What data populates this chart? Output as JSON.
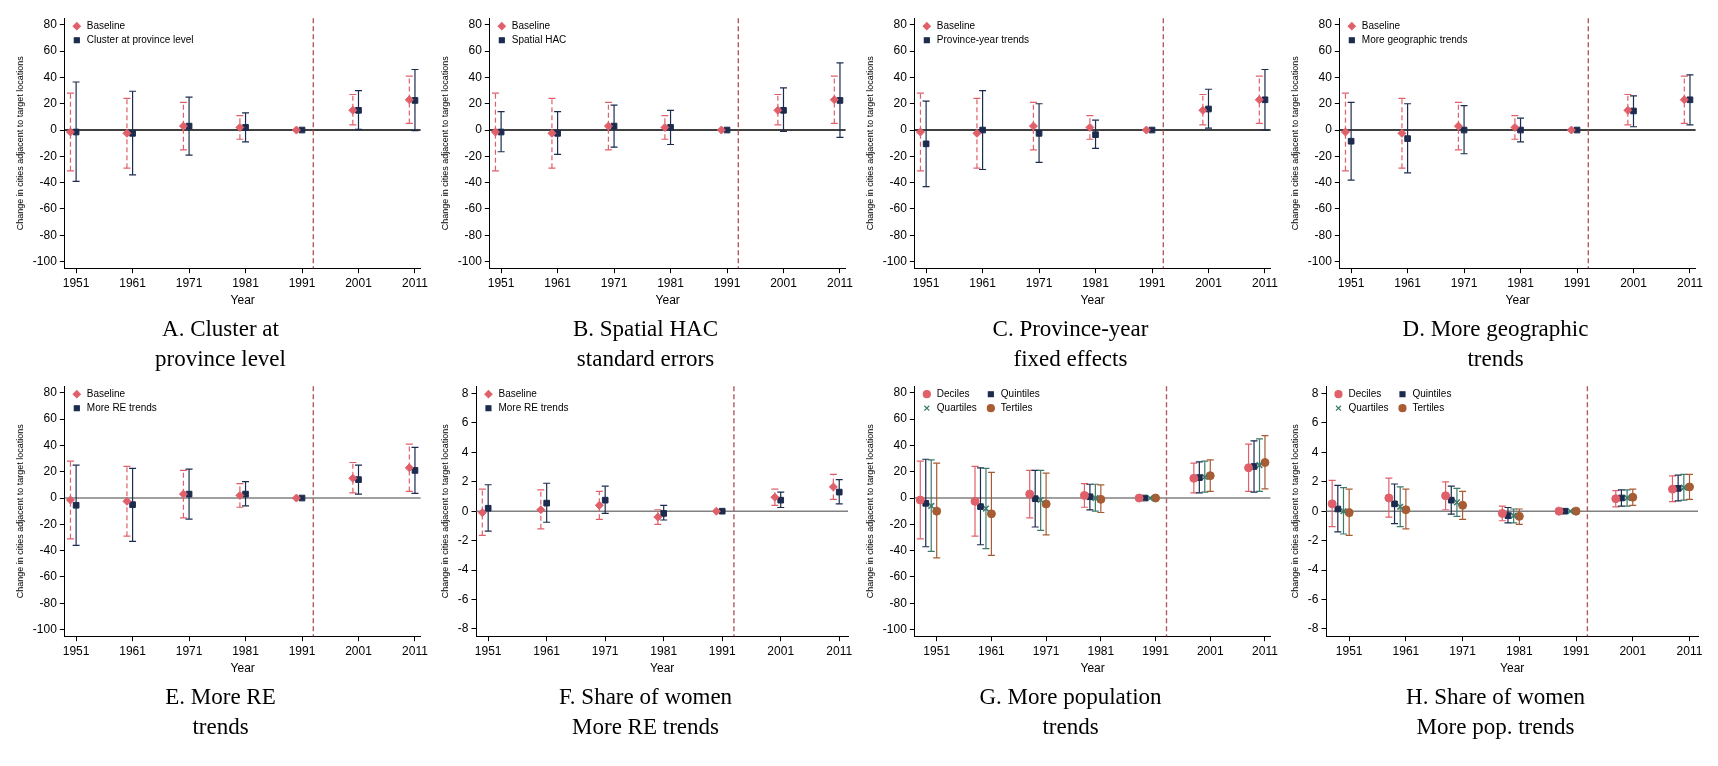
{
  "chart_data": [
    {
      "type": "scatter",
      "title": "A. Cluster at\nprovince level",
      "xlabel": "Year",
      "ylabel": "Change in cities adjacent to target locations",
      "xlim": [
        1949,
        2012
      ],
      "xticks": [
        1951,
        1961,
        1971,
        1981,
        1991,
        2001,
        2011
      ],
      "ylim": [
        -105,
        85
      ],
      "yticks": [
        -100,
        -80,
        -60,
        -40,
        -20,
        0,
        20,
        40,
        60,
        80
      ],
      "grid": false,
      "legend": "top left",
      "ref_lines": [
        {
          "axis": "y",
          "value": 0,
          "color": "#000000"
        },
        {
          "axis": "x",
          "value": 1993,
          "color": "#b05a62",
          "line_style": "dashed"
        }
      ],
      "series": [
        {
          "name": "Baseline",
          "color": "#e0606a",
          "marker": "diamond",
          "line_style": "dashed",
          "x": [
            1950,
            1960,
            1970,
            1980,
            1990,
            2000,
            2010
          ],
          "values": [
            -1.5,
            -2.5,
            3,
            2,
            0,
            15,
            23
          ],
          "errors": [
            [
              -31,
              28
            ],
            [
              -29,
              24
            ],
            [
              -15,
              21
            ],
            [
              -7,
              11
            ],
            null,
            [
              4,
              27
            ],
            [
              5,
              41
            ]
          ]
        },
        {
          "name": "Cluster at province level",
          "color": "#1c2b4e",
          "marker": "square",
          "x": [
            1951,
            1961,
            1971,
            1981,
            1991,
            2001,
            2011
          ],
          "values": [
            -1.5,
            -2.5,
            3,
            2,
            0,
            15,
            22.5
          ],
          "errors": [
            [
              -39,
              36.5
            ],
            [
              -34,
              29.5
            ],
            [
              -19,
              25
            ],
            [
              -9,
              13
            ],
            null,
            [
              0.5,
              30
            ],
            [
              -0.5,
              46
            ]
          ]
        }
      ]
    },
    {
      "type": "scatter",
      "title": "B. Spatial HAC\nstandard errors",
      "xlabel": "Year",
      "ylabel": "Change in cities adjacent to target locations",
      "xlim": [
        1949,
        2012
      ],
      "xticks": [
        1951,
        1961,
        1971,
        1981,
        1991,
        2001,
        2011
      ],
      "ylim": [
        -105,
        85
      ],
      "yticks": [
        -100,
        -80,
        -60,
        -40,
        -20,
        0,
        20,
        40,
        60,
        80
      ],
      "grid": false,
      "legend": "top left",
      "ref_lines": [
        {
          "axis": "y",
          "value": 0,
          "color": "#000000"
        },
        {
          "axis": "x",
          "value": 1993,
          "color": "#b05a62",
          "line_style": "dashed"
        }
      ],
      "series": [
        {
          "name": "Baseline",
          "color": "#e0606a",
          "marker": "diamond",
          "line_style": "dashed",
          "x": [
            1950,
            1960,
            1970,
            1980,
            1990,
            2000,
            2010
          ],
          "values": [
            -1.5,
            -2.5,
            3,
            2,
            0,
            15,
            23
          ],
          "errors": [
            [
              -31,
              28
            ],
            [
              -29,
              24
            ],
            [
              -15,
              21
            ],
            [
              -7,
              11
            ],
            null,
            [
              4,
              27
            ],
            [
              5,
              41
            ]
          ]
        },
        {
          "name": "Spatial HAC",
          "color": "#1c2b4e",
          "marker": "square",
          "x": [
            1951,
            1961,
            1971,
            1981,
            1991,
            2001,
            2011
          ],
          "values": [
            -1.5,
            -2.5,
            3,
            2,
            0,
            15,
            22.5
          ],
          "errors": [
            [
              -16.5,
              14
            ],
            [
              -18.5,
              14
            ],
            [
              -13,
              19
            ],
            [
              -11,
              15
            ],
            null,
            [
              -1,
              32
            ],
            [
              -5.5,
              51
            ]
          ]
        }
      ]
    },
    {
      "type": "scatter",
      "title": "C. Province-year\nfixed effects",
      "xlabel": "Year",
      "ylabel": "Change in cities adjacent to target locations",
      "xlim": [
        1949,
        2012
      ],
      "xticks": [
        1951,
        1961,
        1971,
        1981,
        1991,
        2001,
        2011
      ],
      "ylim": [
        -105,
        85
      ],
      "yticks": [
        -100,
        -80,
        -60,
        -40,
        -20,
        0,
        20,
        40,
        60,
        80
      ],
      "grid": false,
      "legend": "top left",
      "ref_lines": [
        {
          "axis": "y",
          "value": 0,
          "color": "#000000"
        },
        {
          "axis": "x",
          "value": 1993,
          "color": "#b05a62",
          "line_style": "dashed"
        }
      ],
      "series": [
        {
          "name": "Baseline",
          "color": "#e0606a",
          "marker": "diamond",
          "line_style": "dashed",
          "x": [
            1950,
            1960,
            1970,
            1980,
            1990,
            2000,
            2010
          ],
          "values": [
            -1.5,
            -2.5,
            3,
            2,
            0,
            15,
            23
          ],
          "errors": [
            [
              -31,
              28
            ],
            [
              -29,
              24
            ],
            [
              -15,
              21
            ],
            [
              -7,
              11
            ],
            null,
            [
              4,
              27
            ],
            [
              5,
              41
            ]
          ]
        },
        {
          "name": "Province-year trends",
          "color": "#1c2b4e",
          "marker": "square",
          "x": [
            1951,
            1961,
            1971,
            1981,
            1991,
            2001,
            2011
          ],
          "values": [
            -10.5,
            0,
            -2.5,
            -3.5,
            0,
            16,
            23
          ],
          "errors": [
            [
              -43,
              22
            ],
            [
              -30,
              30
            ],
            [
              -24.5,
              20
            ],
            [
              -14,
              7.5
            ],
            null,
            [
              1.5,
              31
            ],
            [
              0,
              46
            ]
          ]
        }
      ]
    },
    {
      "type": "scatter",
      "title": "D. More geographic\ntrends",
      "xlabel": "Year",
      "ylabel": "Change in cities adjacent to target locations",
      "xlim": [
        1949,
        2012
      ],
      "xticks": [
        1951,
        1961,
        1971,
        1981,
        1991,
        2001,
        2011
      ],
      "ylim": [
        -105,
        85
      ],
      "yticks": [
        -100,
        -80,
        -60,
        -40,
        -20,
        0,
        20,
        40,
        60,
        80
      ],
      "grid": false,
      "legend": "top left",
      "ref_lines": [
        {
          "axis": "y",
          "value": 0,
          "color": "#000000"
        },
        {
          "axis": "x",
          "value": 1993,
          "color": "#b05a62",
          "line_style": "dashed"
        }
      ],
      "series": [
        {
          "name": "Baseline",
          "color": "#e0606a",
          "marker": "diamond",
          "line_style": "dashed",
          "x": [
            1950,
            1960,
            1970,
            1980,
            1990,
            2000,
            2010
          ],
          "values": [
            -1.5,
            -2.5,
            3,
            2,
            0,
            15,
            23
          ],
          "errors": [
            [
              -31,
              28
            ],
            [
              -29,
              24
            ],
            [
              -15,
              21
            ],
            [
              -7,
              11
            ],
            null,
            [
              4,
              27
            ],
            [
              5,
              41
            ]
          ]
        },
        {
          "name": "More geographic trends",
          "color": "#1c2b4e",
          "marker": "square",
          "x": [
            1951,
            1961,
            1971,
            1981,
            1991,
            2001,
            2011
          ],
          "values": [
            -8.5,
            -6.5,
            0,
            0,
            0,
            14.5,
            23
          ],
          "errors": [
            [
              -38,
              21
            ],
            [
              -32.5,
              20
            ],
            [
              -18,
              18.5
            ],
            [
              -9,
              9
            ],
            null,
            [
              2.5,
              26
            ],
            [
              4,
              42
            ]
          ]
        }
      ]
    },
    {
      "type": "scatter",
      "title": "E. More RE\ntrends",
      "xlabel": "Year",
      "ylabel": "Change in cities adjacent to target locations",
      "xlim": [
        1949,
        2012
      ],
      "xticks": [
        1951,
        1961,
        1971,
        1981,
        1991,
        2001,
        2011
      ],
      "ylim": [
        -105,
        85
      ],
      "yticks": [
        -100,
        -80,
        -60,
        -40,
        -20,
        0,
        20,
        40,
        60,
        80
      ],
      "grid": false,
      "legend": "top left",
      "ref_lines": [
        {
          "axis": "y",
          "value": 0,
          "color": "#808080"
        },
        {
          "axis": "x",
          "value": 1993,
          "color": "#b05a62",
          "line_style": "dashed"
        }
      ],
      "series": [
        {
          "name": "Baseline",
          "color": "#e0606a",
          "marker": "diamond",
          "line_style": "dashed",
          "x": [
            1950,
            1960,
            1970,
            1980,
            1990,
            2000,
            2010
          ],
          "values": [
            -1.5,
            -2.5,
            3,
            2,
            0,
            15,
            23
          ],
          "errors": [
            [
              -31,
              28
            ],
            [
              -29,
              24
            ],
            [
              -15,
              21
            ],
            [
              -7,
              11
            ],
            null,
            [
              4,
              27
            ],
            [
              5,
              41
            ]
          ]
        },
        {
          "name": "More RE trends",
          "color": "#1c2b4e",
          "marker": "square",
          "x": [
            1951,
            1961,
            1971,
            1981,
            1991,
            2001,
            2011
          ],
          "values": [
            -5.5,
            -5,
            3,
            3,
            0,
            14,
            21
          ],
          "errors": [
            [
              -36,
              25
            ],
            [
              -33,
              22.5
            ],
            [
              -16,
              22
            ],
            [
              -6,
              12.5
            ],
            null,
            [
              3,
              25
            ],
            [
              3.5,
              38.5
            ]
          ]
        }
      ]
    },
    {
      "type": "scatter",
      "title": "F. Share of women\nMore RE trends",
      "xlabel": "Year",
      "ylabel": "Change in cities adjacent to target locations",
      "xlim": [
        1949,
        2012.5
      ],
      "xticks": [
        1951,
        1961,
        1971,
        1981,
        1991,
        2001,
        2011
      ],
      "ylim": [
        -8.5,
        8.5
      ],
      "yticks": [
        -8,
        -6,
        -4,
        -2,
        0,
        2,
        4,
        6,
        8
      ],
      "grid": false,
      "legend": "top left",
      "ref_lines": [
        {
          "axis": "y",
          "value": 0,
          "color": "#808080"
        },
        {
          "axis": "x",
          "value": 1993,
          "color": "#b05a62",
          "line_style": "dashed"
        }
      ],
      "series": [
        {
          "name": "Baseline",
          "color": "#e0606a",
          "marker": "diamond",
          "line_style": "dashed",
          "x": [
            1950,
            1960,
            1970,
            1980,
            1990,
            2000,
            2010
          ],
          "values": [
            -0.1,
            0.1,
            0.4,
            -0.4,
            0,
            0.95,
            1.65
          ],
          "errors": [
            [
              -1.65,
              1.5
            ],
            [
              -1.2,
              1.45
            ],
            [
              -0.55,
              1.35
            ],
            [
              -0.9,
              0.1
            ],
            null,
            [
              0.4,
              1.5
            ],
            [
              0.8,
              2.5
            ]
          ]
        },
        {
          "name": "More RE trends",
          "color": "#1c2b4e",
          "marker": "square",
          "x": [
            1951,
            1961,
            1971,
            1981,
            1991,
            2001,
            2011
          ],
          "values": [
            0.2,
            0.55,
            0.75,
            -0.15,
            0,
            0.75,
            1.3
          ],
          "errors": [
            [
              -1.35,
              1.8
            ],
            [
              -0.75,
              1.9
            ],
            [
              -0.15,
              1.7
            ],
            [
              -0.6,
              0.4
            ],
            null,
            [
              0.25,
              1.3
            ],
            [
              0.5,
              2.15
            ]
          ]
        }
      ]
    },
    {
      "type": "scatter",
      "title": "G. More population\ntrends",
      "xlabel": "Year",
      "ylabel": "Change in cities adjacent to target locations",
      "xlim": [
        1947,
        2012
      ],
      "xticks": [
        1951,
        1961,
        1971,
        1981,
        1991,
        2001,
        2011
      ],
      "ylim": [
        -105,
        85
      ],
      "yticks": [
        -100,
        -80,
        -60,
        -40,
        -20,
        0,
        20,
        40,
        60,
        80
      ],
      "grid": false,
      "legend": "top left",
      "ref_lines": [
        {
          "axis": "y",
          "value": 0,
          "color": "#808080"
        },
        {
          "axis": "x",
          "value": 1993,
          "color": "#b05a62",
          "line_style": "dashed"
        }
      ],
      "series": [
        {
          "name": "Deciles",
          "color": "#e0606a",
          "marker": "circle",
          "x": [
            1948,
            1958,
            1968,
            1978,
            1988,
            1998,
            2008
          ],
          "values": [
            -1.5,
            -2.5,
            3,
            2,
            0,
            15,
            23
          ],
          "errors": [
            [
              -31,
              28
            ],
            [
              -29,
              24
            ],
            [
              -15,
              21
            ],
            [
              -7,
              11
            ],
            null,
            [
              4,
              26.5
            ],
            [
              5,
              41
            ]
          ]
        },
        {
          "name": "Quintiles",
          "color": "#1c2b4e",
          "marker": "square",
          "x": [
            1949,
            1959,
            1969,
            1979,
            1989,
            1999,
            2009
          ],
          "values": [
            -4,
            -6.5,
            -0.5,
            1,
            0,
            15.5,
            24
          ],
          "errors": [
            [
              -37,
              29.5
            ],
            [
              -35.5,
              23
            ],
            [
              -22,
              21
            ],
            [
              -9,
              10.5
            ],
            null,
            [
              4,
              27.5
            ],
            [
              4.5,
              43.5
            ]
          ]
        },
        {
          "name": "Quartiles",
          "color": "#3d7a6b",
          "marker": "cross",
          "x": [
            1950,
            1960,
            1970,
            1980,
            1990,
            2000,
            2010
          ],
          "values": [
            -6,
            -8,
            -1.5,
            0,
            0,
            16,
            25
          ],
          "errors": [
            [
              -40.5,
              29
            ],
            [
              -38.5,
              22.5
            ],
            [
              -24.5,
              21
            ],
            [
              -10,
              10.5
            ],
            null,
            [
              4.5,
              28
            ],
            [
              5,
              45
            ]
          ]
        },
        {
          "name": "Tertiles",
          "color": "#a85c33",
          "marker": "circle",
          "x": [
            1951,
            1961,
            1971,
            1981,
            1991,
            2001,
            2011
          ],
          "values": [
            -10,
            -12,
            -4.5,
            -1,
            0,
            17,
            27
          ],
          "errors": [
            [
              -45.5,
              26.5
            ],
            [
              -43.5,
              19.5
            ],
            [
              -28,
              19
            ],
            [
              -11,
              10
            ],
            null,
            [
              5,
              29
            ],
            [
              7,
              47.5
            ]
          ]
        }
      ]
    },
    {
      "type": "scatter",
      "title": "H. Share of women\nMore pop. trends",
      "xlabel": "Year",
      "ylabel": "Change in cities adjacent to target locations",
      "xlim": [
        1947,
        2012.5
      ],
      "xticks": [
        1951,
        1961,
        1971,
        1981,
        1991,
        2001,
        2011
      ],
      "ylim": [
        -8.5,
        8.5
      ],
      "yticks": [
        -8,
        -6,
        -4,
        -2,
        0,
        2,
        4,
        6,
        8
      ],
      "grid": false,
      "legend": "top left",
      "ref_lines": [
        {
          "axis": "y",
          "value": 0,
          "color": "#808080"
        },
        {
          "axis": "x",
          "value": 1993,
          "color": "#b05a62",
          "line_style": "dashed"
        }
      ],
      "series": [
        {
          "name": "Deciles",
          "color": "#e0606a",
          "marker": "circle",
          "x": [
            1948,
            1958,
            1968,
            1978,
            1988,
            1998,
            2008
          ],
          "values": [
            0.5,
            0.9,
            1.05,
            -0.15,
            0,
            0.85,
            1.5
          ],
          "errors": [
            [
              -1.05,
              2.1
            ],
            [
              -0.4,
              2.25
            ],
            [
              0.1,
              2
            ],
            [
              -0.65,
              0.35
            ],
            null,
            [
              0.3,
              1.4
            ],
            [
              0.65,
              2.4
            ]
          ]
        },
        {
          "name": "Quintiles",
          "color": "#1c2b4e",
          "marker": "square",
          "x": [
            1949,
            1959,
            1969,
            1979,
            1989,
            1999,
            2009
          ],
          "values": [
            0.15,
            0.5,
            0.75,
            -0.3,
            0,
            0.9,
            1.55
          ],
          "errors": [
            [
              -1.4,
              1.75
            ],
            [
              -0.85,
              1.85
            ],
            [
              -0.2,
              1.7
            ],
            [
              -0.8,
              0.25
            ],
            null,
            [
              0.35,
              1.45
            ],
            [
              0.7,
              2.45
            ]
          ]
        },
        {
          "name": "Quartiles",
          "color": "#3d7a6b",
          "marker": "cross",
          "x": [
            1950,
            1960,
            1970,
            1980,
            1990,
            2000,
            2010
          ],
          "values": [
            0,
            0.3,
            0.6,
            -0.3,
            0,
            0.9,
            1.6
          ],
          "errors": [
            [
              -1.55,
              1.6
            ],
            [
              -1.05,
              1.65
            ],
            [
              -0.35,
              1.55
            ],
            [
              -0.8,
              0.15
            ],
            null,
            [
              0.35,
              1.45
            ],
            [
              0.75,
              2.5
            ]
          ]
        },
        {
          "name": "Tertiles",
          "color": "#a85c33",
          "marker": "circle",
          "x": [
            1951,
            1961,
            1971,
            1981,
            1991,
            2001,
            2011
          ],
          "values": [
            -0.1,
            0.1,
            0.4,
            -0.35,
            0,
            0.95,
            1.65
          ],
          "errors": [
            [
              -1.65,
              1.5
            ],
            [
              -1.2,
              1.5
            ],
            [
              -0.55,
              1.35
            ],
            [
              -0.9,
              0.15
            ],
            null,
            [
              0.4,
              1.5
            ],
            [
              0.8,
              2.5
            ]
          ]
        }
      ]
    }
  ]
}
